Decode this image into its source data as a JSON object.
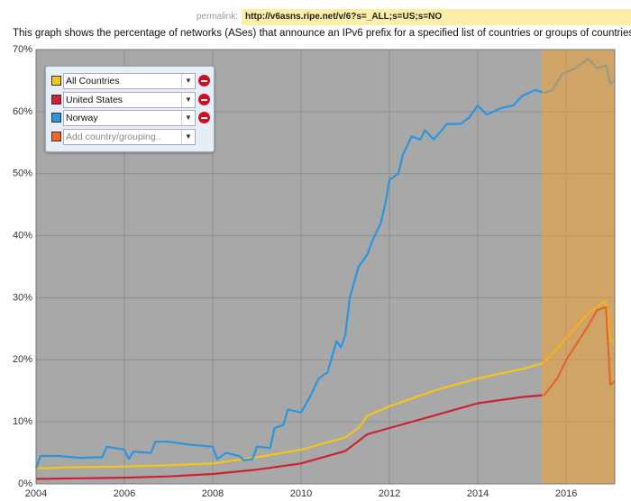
{
  "permalink_label": "permalink:",
  "permalink_url": "http://v6asns.ripe.net/v/6?s=_ALL;s=US;s=NO",
  "description": "This graph shows the percentage of networks (ASes) that announce an IPv6 prefix for a specified list of countries or groups of countries",
  "add_control": {
    "color": "#ee6a1e",
    "placeholder": "Add country/grouping.."
  },
  "chart_data": {
    "type": "line",
    "xlim": [
      2004,
      2017.1
    ],
    "xticks": [
      2004,
      2006,
      2008,
      2010,
      2012,
      2014,
      2016
    ],
    "ylim": [
      0,
      70
    ],
    "yticks": [
      {
        "value": 0,
        "label": "0%"
      },
      {
        "value": 10,
        "label": "10%"
      },
      {
        "value": 20,
        "label": "20%"
      },
      {
        "value": 30,
        "label": "30%"
      },
      {
        "value": 40,
        "label": "40%"
      },
      {
        "value": 50,
        "label": "50%"
      },
      {
        "value": 60,
        "label": "60%"
      },
      {
        "value": 70,
        "label": "70%"
      }
    ],
    "grid": true,
    "highlight": {
      "xlim": [
        2015.47,
        2017.1
      ],
      "color": "#f0a030"
    },
    "series": [
      {
        "name": "All Countries",
        "color": "#f5c518",
        "x": [
          2004,
          2005,
          2006,
          2007,
          2008,
          2009,
          2010,
          2011,
          2011.3,
          2011.5,
          2012,
          2013,
          2014,
          2015,
          2015.5,
          2016,
          2016.5,
          2016.9,
          2017,
          2017.1
        ],
        "values": [
          2.5,
          2.7,
          2.8,
          3,
          3.3,
          4.3,
          5.5,
          7.5,
          9,
          11,
          12.5,
          15,
          17,
          18.5,
          19.5,
          23.5,
          27.5,
          29.5,
          23,
          23
        ]
      },
      {
        "name": "United States",
        "color": "#cc2233",
        "x": [
          2004,
          2005,
          2006,
          2007,
          2008,
          2009,
          2010,
          2011,
          2011.5,
          2012,
          2013,
          2014,
          2015,
          2015.5,
          2015.8,
          2016,
          2016.5,
          2016.7,
          2016.9,
          2017,
          2017.1
        ],
        "values": [
          0.8,
          0.9,
          1,
          1.2,
          1.6,
          2.3,
          3.3,
          5.3,
          8,
          9,
          11,
          13,
          14,
          14.3,
          17,
          20,
          25.5,
          28,
          28.5,
          16,
          16.5
        ]
      },
      {
        "name": "Norway",
        "color": "#2b95e0",
        "x": [
          2004,
          2004.1,
          2004.5,
          2005,
          2005.5,
          2005.6,
          2006,
          2006.1,
          2006.2,
          2006.6,
          2006.7,
          2007,
          2007.5,
          2008,
          2008.1,
          2008.3,
          2008.6,
          2008.7,
          2008.9,
          2009,
          2009.3,
          2009.4,
          2009.6,
          2009.7,
          2010,
          2010.2,
          2010.4,
          2010.6,
          2010.8,
          2010.9,
          2011,
          2011.1,
          2011.3,
          2011.5,
          2011.6,
          2011.8,
          2011.9,
          2012,
          2012.2,
          2012.3,
          2012.5,
          2012.7,
          2012.8,
          2013,
          2013.3,
          2013.6,
          2013.8,
          2014,
          2014.2,
          2014.5,
          2014.8,
          2015,
          2015.3,
          2015.5,
          2015.7,
          2015.9,
          2016.2,
          2016.5,
          2016.7,
          2016.9,
          2017,
          2017.1
        ],
        "values": [
          2.5,
          4.5,
          4.5,
          4.2,
          4.3,
          6,
          5.5,
          4,
          5.2,
          5,
          6.8,
          6.8,
          6.3,
          6,
          4,
          5,
          4.5,
          3.8,
          4,
          6,
          5.8,
          9,
          9.5,
          12,
          11.5,
          14,
          17,
          18,
          23,
          22,
          24,
          30,
          35,
          37,
          39,
          42,
          45,
          49,
          50,
          53,
          56,
          55.5,
          57,
          55.5,
          58,
          58,
          59,
          61,
          59.5,
          60.5,
          61,
          62.5,
          63.5,
          63,
          63.5,
          66,
          67,
          68.5,
          67,
          67.5,
          64.5,
          65
        ]
      }
    ]
  }
}
